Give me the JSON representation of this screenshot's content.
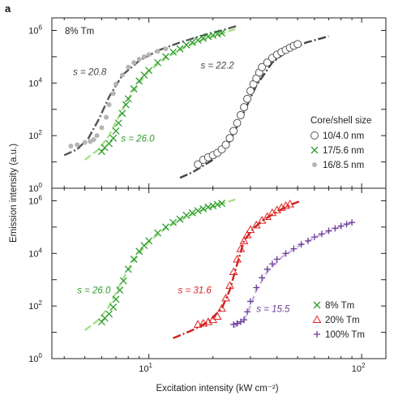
{
  "panel_label": "a",
  "xlabel": "Excitation intensity (kW cm⁻²)",
  "ylabel": "Emission intensity (a.u.)",
  "chart_data": [
    {
      "type": "scatter",
      "panel": "top",
      "label": "8% Tm",
      "x_scale": "log",
      "y_scale": "log",
      "xlim": [
        3.5,
        130
      ],
      "ylim": [
        1,
        3000000
      ],
      "xticks": [
        {
          "v": 10,
          "t": "10",
          "e": "1"
        },
        {
          "v": 100,
          "t": "10",
          "e": "2"
        }
      ],
      "yticks": [
        {
          "v": 1,
          "t": "10",
          "e": "0"
        },
        {
          "v": 100,
          "t": "10",
          "e": "2"
        },
        {
          "v": 10000,
          "t": "10",
          "e": "4"
        },
        {
          "v": 1000000,
          "t": "10",
          "e": "6"
        }
      ],
      "legend_title": "Core/shell size",
      "legend_position": "right",
      "series": [
        {
          "name": "10/4.0 nm",
          "marker": "circle",
          "color": "#555555",
          "fit_color": "#444444",
          "x": [
            17,
            18,
            19,
            20,
            21,
            22,
            23,
            24,
            25,
            26,
            27,
            28,
            29,
            30,
            31,
            32,
            33,
            34,
            36,
            38,
            40,
            42,
            44,
            46,
            48,
            50
          ],
          "y": [
            8,
            12,
            15,
            18,
            22,
            30,
            45,
            80,
            150,
            300,
            600,
            1200,
            2500,
            5000,
            9000,
            15000,
            25000,
            40000,
            60000,
            90000,
            120000,
            150000,
            180000,
            220000,
            260000,
            300000
          ],
          "fit_x": [
            14,
            16,
            20,
            24,
            28,
            32,
            38,
            45,
            55,
            70
          ],
          "fit_y": [
            2.5,
            4,
            12,
            60,
            800,
            8000,
            60000,
            170000,
            350000,
            600000
          ]
        },
        {
          "name": "17/5.6 nm",
          "marker": "x",
          "color": "#2e9c2e",
          "fit_color": "#a8e08a",
          "x": [
            6,
            6.2,
            6.5,
            6.8,
            7,
            7.2,
            7.5,
            7.8,
            8,
            8.5,
            9,
            9.5,
            10,
            11,
            12,
            13,
            14,
            15,
            16,
            17,
            18,
            19,
            20,
            21,
            22
          ],
          "y": [
            25,
            35,
            50,
            80,
            150,
            300,
            700,
            1500,
            2500,
            6000,
            12000,
            20000,
            30000,
            60000,
            100000,
            150000,
            200000,
            280000,
            350000,
            420000,
            500000,
            580000,
            650000,
            720000,
            800000
          ],
          "fit_x": [
            5,
            5.8,
            6.5,
            7.2,
            8,
            9,
            10,
            12,
            15,
            18,
            22,
            26
          ],
          "fit_y": [
            12,
            30,
            100,
            500,
            2500,
            10000,
            28000,
            90000,
            240000,
            450000,
            750000,
            1200000
          ]
        },
        {
          "name": "16/8.5 nm",
          "marker": "dot",
          "color": "#b5b5b5",
          "fit_color": "#555555",
          "x": [
            4.3,
            4.6,
            5,
            5.3,
            5.5,
            5.7,
            6,
            6.3,
            6.5,
            6.8,
            7,
            7.5,
            8,
            8.5,
            9,
            9.5,
            10,
            11,
            12
          ],
          "y": [
            40,
            45,
            55,
            60,
            70,
            100,
            200,
            500,
            1500,
            4000,
            9000,
            20000,
            40000,
            60000,
            80000,
            100000,
            120000,
            160000,
            200000
          ],
          "fit_x": [
            4,
            4.6,
            5.2,
            5.8,
            6.5,
            7.5,
            9,
            11,
            14,
            18,
            22,
            26
          ],
          "fit_y": [
            18,
            30,
            80,
            400,
            3000,
            20000,
            70000,
            170000,
            350000,
            650000,
            1000000,
            1500000
          ]
        }
      ],
      "annotations": [
        {
          "text": "s = 20.8",
          "color": "#444444",
          "x": 4.4,
          "y": 20000
        },
        {
          "text": "s = 26.0",
          "color": "#2e9c2e",
          "x": 7.4,
          "y": 60
        },
        {
          "text": "s = 22.2",
          "color": "#444444",
          "x": 17.5,
          "y": 35000
        }
      ]
    },
    {
      "type": "scatter",
      "panel": "bottom",
      "x_scale": "log",
      "y_scale": "log",
      "xlim": [
        3.5,
        130
      ],
      "ylim": [
        1,
        3000000
      ],
      "xticks": [
        {
          "v": 10,
          "t": "10",
          "e": "1"
        },
        {
          "v": 100,
          "t": "10",
          "e": "2"
        }
      ],
      "yticks": [
        {
          "v": 1,
          "t": "10",
          "e": "0"
        },
        {
          "v": 100,
          "t": "10",
          "e": "2"
        },
        {
          "v": 10000,
          "t": "10",
          "e": "4"
        },
        {
          "v": 1000000,
          "t": "10",
          "e": "6"
        }
      ],
      "legend_position": "bottom-right",
      "series": [
        {
          "name": "8% Tm",
          "marker": "x",
          "color": "#2e9c2e",
          "fit_color": "#a8e08a",
          "x": [
            6,
            6.2,
            6.5,
            6.8,
            7,
            7.3,
            7.6,
            8,
            8.5,
            9,
            9.5,
            10,
            11,
            12,
            13,
            14,
            15,
            16,
            17,
            18,
            19,
            20,
            21,
            22
          ],
          "y": [
            25,
            35,
            50,
            90,
            180,
            400,
            900,
            2500,
            6000,
            12000,
            20000,
            30000,
            60000,
            100000,
            150000,
            200000,
            280000,
            350000,
            420000,
            500000,
            580000,
            650000,
            720000,
            800000
          ],
          "fit_x": [
            5,
            5.8,
            6.5,
            7.2,
            8,
            9,
            10,
            12,
            15,
            18,
            22,
            26
          ],
          "fit_y": [
            12,
            30,
            100,
            500,
            2500,
            10000,
            28000,
            90000,
            240000,
            450000,
            750000,
            1200000
          ]
        },
        {
          "name": "20% Tm",
          "marker": "triangle",
          "color": "#e02020",
          "fit_color": "#cc2020",
          "x": [
            17,
            18,
            19,
            20,
            21,
            22,
            23,
            24,
            25,
            26,
            27,
            28,
            29,
            30,
            32,
            34,
            36,
            38,
            40,
            42,
            44,
            46
          ],
          "y": [
            20,
            22,
            25,
            30,
            40,
            80,
            200,
            600,
            2000,
            6000,
            15000,
            30000,
            50000,
            80000,
            120000,
            180000,
            250000,
            350000,
            450000,
            550000,
            650000,
            750000
          ],
          "fit_x": [
            13,
            16,
            19,
            22,
            24,
            26,
            28,
            31,
            35,
            40,
            45,
            52
          ],
          "fit_y": [
            6,
            12,
            25,
            80,
            400,
            4000,
            30000,
            90000,
            200000,
            380000,
            650000,
            1000000
          ]
        },
        {
          "name": "100% Tm",
          "marker": "plus",
          "color": "#6a3d9a",
          "fit_color": "#c9b3e0",
          "x": [
            25,
            26,
            27,
            28,
            29,
            30,
            32,
            34,
            36,
            38,
            40,
            44,
            48,
            52,
            56,
            60,
            65,
            70,
            75,
            80,
            85,
            90
          ],
          "y": [
            20,
            22,
            25,
            30,
            60,
            150,
            500,
            1200,
            2500,
            4000,
            6000,
            10000,
            15000,
            22000,
            30000,
            42000,
            55000,
            72000,
            90000,
            110000,
            130000,
            150000
          ],
          "fit_x": [
            25,
            28,
            30,
            32,
            36,
            42,
            50,
            60,
            72,
            90
          ],
          "fit_y": [
            15,
            30,
            100,
            400,
            2000,
            7000,
            18000,
            40000,
            75000,
            150000
          ]
        }
      ],
      "annotations": [
        {
          "text": "s = 26.0",
          "color": "#2e9c2e",
          "x": 4.6,
          "y": 300
        },
        {
          "text": "s = 31.6",
          "color": "#e02020",
          "x": 13.7,
          "y": 300
        },
        {
          "text": "s = 15.5",
          "color": "#6a3d9a",
          "x": 32,
          "y": 60
        }
      ]
    }
  ]
}
